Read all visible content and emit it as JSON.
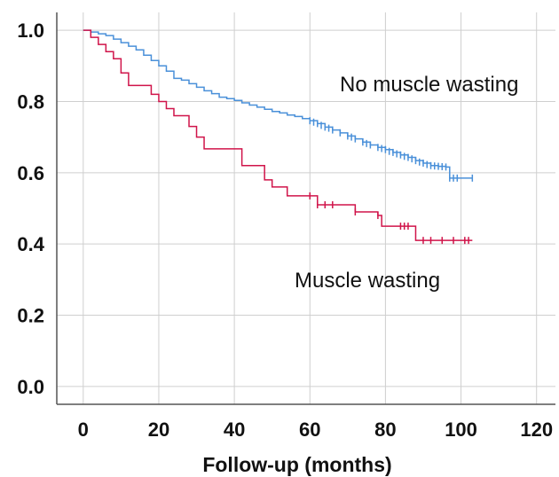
{
  "chart_data": {
    "type": "line",
    "title": "",
    "xlabel": "Follow-up (months)",
    "ylabel": "",
    "xlim": [
      -7,
      125
    ],
    "ylim": [
      -0.05,
      1.05
    ],
    "x_ticks": [
      0,
      20,
      40,
      60,
      80,
      100,
      120
    ],
    "y_ticks": [
      0.0,
      0.2,
      0.4,
      0.6,
      0.8,
      1.0
    ],
    "x_tick_labels": [
      "0",
      "20",
      "40",
      "60",
      "80",
      "100",
      "120"
    ],
    "y_tick_labels": [
      "0.0",
      "0.2",
      "0.4",
      "0.6",
      "0.8",
      "1.0"
    ],
    "grid": true,
    "legend": "none",
    "series": [
      {
        "name": "No muscle wasting",
        "color": "#4a90d9",
        "points": [
          [
            0,
            1.0
          ],
          [
            2,
            0.995
          ],
          [
            4,
            0.99
          ],
          [
            6,
            0.985
          ],
          [
            8,
            0.975
          ],
          [
            10,
            0.965
          ],
          [
            12,
            0.955
          ],
          [
            14,
            0.945
          ],
          [
            16,
            0.93
          ],
          [
            18,
            0.915
          ],
          [
            20,
            0.9
          ],
          [
            22,
            0.885
          ],
          [
            24,
            0.865
          ],
          [
            26,
            0.86
          ],
          [
            28,
            0.85
          ],
          [
            30,
            0.84
          ],
          [
            32,
            0.83
          ],
          [
            34,
            0.822
          ],
          [
            36,
            0.812
          ],
          [
            38,
            0.808
          ],
          [
            40,
            0.803
          ],
          [
            42,
            0.796
          ],
          [
            44,
            0.79
          ],
          [
            46,
            0.784
          ],
          [
            48,
            0.778
          ],
          [
            50,
            0.772
          ],
          [
            52,
            0.768
          ],
          [
            54,
            0.762
          ],
          [
            56,
            0.758
          ],
          [
            58,
            0.752
          ],
          [
            60,
            0.746
          ],
          [
            62,
            0.738
          ],
          [
            64,
            0.728
          ],
          [
            66,
            0.72
          ],
          [
            68,
            0.712
          ],
          [
            70,
            0.703
          ],
          [
            72,
            0.695
          ],
          [
            74,
            0.686
          ],
          [
            76,
            0.678
          ],
          [
            78,
            0.671
          ],
          [
            80,
            0.665
          ],
          [
            82,
            0.657
          ],
          [
            84,
            0.65
          ],
          [
            86,
            0.643
          ],
          [
            88,
            0.634
          ],
          [
            90,
            0.627
          ],
          [
            92,
            0.62
          ],
          [
            94,
            0.618
          ],
          [
            96,
            0.616
          ],
          [
            97,
            0.585
          ],
          [
            103,
            0.585
          ]
        ],
        "censored": [
          [
            60,
            0.746
          ],
          [
            61,
            0.742
          ],
          [
            62,
            0.738
          ],
          [
            63,
            0.733
          ],
          [
            64,
            0.728
          ],
          [
            65,
            0.725
          ],
          [
            66,
            0.72
          ],
          [
            68,
            0.712
          ],
          [
            70,
            0.703
          ],
          [
            71,
            0.7
          ],
          [
            72,
            0.695
          ],
          [
            74,
            0.686
          ],
          [
            75,
            0.682
          ],
          [
            76,
            0.678
          ],
          [
            78,
            0.671
          ],
          [
            79,
            0.668
          ],
          [
            80,
            0.665
          ],
          [
            81,
            0.66
          ],
          [
            82,
            0.657
          ],
          [
            83,
            0.653
          ],
          [
            84,
            0.65
          ],
          [
            85,
            0.646
          ],
          [
            86,
            0.643
          ],
          [
            87,
            0.639
          ],
          [
            88,
            0.634
          ],
          [
            89,
            0.63
          ],
          [
            90,
            0.627
          ],
          [
            91,
            0.623
          ],
          [
            92,
            0.62
          ],
          [
            93,
            0.619
          ],
          [
            94,
            0.618
          ],
          [
            95,
            0.617
          ],
          [
            96,
            0.616
          ],
          [
            97,
            0.585
          ],
          [
            98,
            0.585
          ],
          [
            99,
            0.585
          ],
          [
            103,
            0.585
          ]
        ]
      },
      {
        "name": "Muscle wasting",
        "color": "#d0144a",
        "points": [
          [
            0,
            1.0
          ],
          [
            2,
            0.98
          ],
          [
            4,
            0.96
          ],
          [
            6,
            0.94
          ],
          [
            8,
            0.92
          ],
          [
            10,
            0.88
          ],
          [
            12,
            0.845
          ],
          [
            14,
            0.845
          ],
          [
            16,
            0.845
          ],
          [
            18,
            0.82
          ],
          [
            20,
            0.8
          ],
          [
            22,
            0.78
          ],
          [
            24,
            0.76
          ],
          [
            26,
            0.76
          ],
          [
            28,
            0.73
          ],
          [
            30,
            0.7
          ],
          [
            32,
            0.667
          ],
          [
            34,
            0.667
          ],
          [
            40,
            0.667
          ],
          [
            42,
            0.62
          ],
          [
            46,
            0.62
          ],
          [
            48,
            0.58
          ],
          [
            50,
            0.56
          ],
          [
            52,
            0.56
          ],
          [
            54,
            0.535
          ],
          [
            60,
            0.535
          ],
          [
            62,
            0.51
          ],
          [
            70,
            0.51
          ],
          [
            72,
            0.49
          ],
          [
            78,
            0.48
          ],
          [
            79,
            0.45
          ],
          [
            88,
            0.45
          ],
          [
            88,
            0.41
          ],
          [
            103,
            0.41
          ]
        ],
        "censored": [
          [
            60,
            0.535
          ],
          [
            62,
            0.51
          ],
          [
            64,
            0.51
          ],
          [
            66,
            0.51
          ],
          [
            72,
            0.49
          ],
          [
            78,
            0.48
          ],
          [
            84,
            0.45
          ],
          [
            85,
            0.45
          ],
          [
            86,
            0.45
          ],
          [
            90,
            0.41
          ],
          [
            92,
            0.41
          ],
          [
            95,
            0.41
          ],
          [
            98,
            0.41
          ],
          [
            101,
            0.41
          ],
          [
            102,
            0.41
          ]
        ]
      }
    ]
  },
  "labels": {
    "no_muscle_wasting": "No muscle wasting",
    "muscle_wasting": "Muscle wasting"
  }
}
